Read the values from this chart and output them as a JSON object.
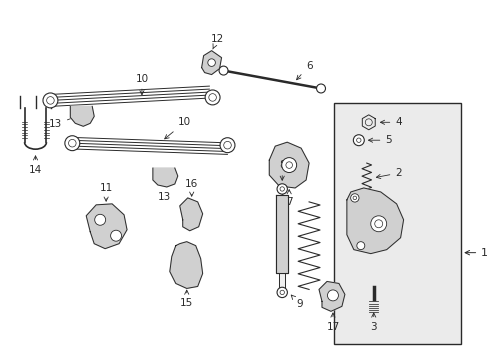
{
  "bg_color": "#ffffff",
  "line_color": "#2a2a2a",
  "fill_color": "#e8e8e8",
  "box_fill": "#ebebeb",
  "fig_width": 4.89,
  "fig_height": 3.6,
  "dpi": 100
}
